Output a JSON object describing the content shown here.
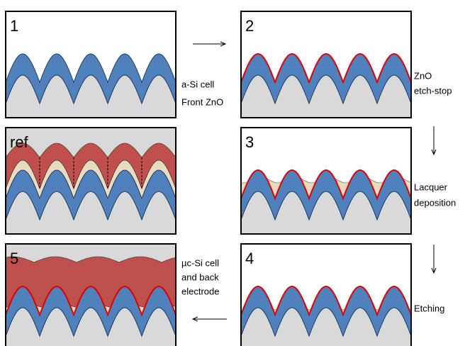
{
  "panels": [
    {
      "label": "1"
    },
    {
      "label": "2"
    },
    {
      "label": "ref"
    },
    {
      "label": "3"
    },
    {
      "label": "5"
    },
    {
      "label": "4"
    }
  ],
  "notes": [
    {
      "lines": [
        "a-Si cell",
        "Front ZnO"
      ]
    },
    {
      "lines": [
        "ZnO",
        "etch-stop"
      ]
    },
    {
      "lines": [
        "Lacquer",
        "deposition"
      ]
    },
    {
      "lines": [
        "Etching"
      ]
    },
    {
      "lines": [
        "µc-Si cell",
        "and back",
        "electrode"
      ]
    }
  ]
}
